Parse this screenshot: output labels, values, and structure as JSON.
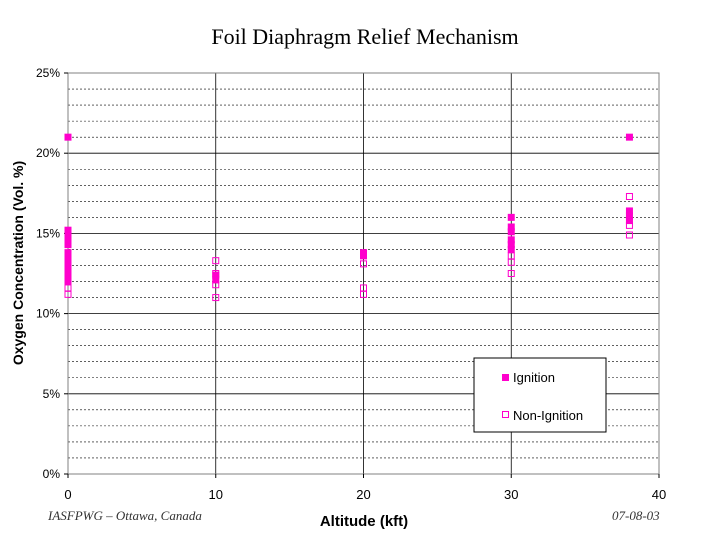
{
  "chart_data": {
    "type": "scatter",
    "title": "Foil Diaphragm Relief Mechanism",
    "xlabel": "Altitude (kft)",
    "ylabel": "Oxygen Concentration (Vol. %)",
    "xlim": [
      0,
      40
    ],
    "ylim": [
      0,
      25
    ],
    "x_ticks": [
      "0",
      "10",
      "20",
      "30",
      "40"
    ],
    "y_ticks": [
      "0%",
      "5%",
      "10%",
      "15%",
      "20%",
      "25%"
    ],
    "grid": true,
    "legend_position": "bottom-right",
    "series": [
      {
        "name": "Ignition",
        "marker": "filled-square",
        "color": "#ff00cc",
        "points": [
          [
            0,
            21.0
          ],
          [
            0,
            15.2
          ],
          [
            0,
            14.9
          ],
          [
            0,
            14.6
          ],
          [
            0,
            14.3
          ],
          [
            0,
            13.8
          ],
          [
            0,
            13.5
          ],
          [
            0,
            13.2
          ],
          [
            0,
            12.9
          ],
          [
            0,
            12.6
          ],
          [
            0,
            12.3
          ],
          [
            0,
            12.0
          ],
          [
            10,
            12.4
          ],
          [
            10,
            12.1
          ],
          [
            20,
            13.8
          ],
          [
            20,
            13.6
          ],
          [
            30,
            16.0
          ],
          [
            30,
            15.4
          ],
          [
            30,
            15.1
          ],
          [
            30,
            14.6
          ],
          [
            30,
            14.3
          ],
          [
            30,
            14.0
          ],
          [
            38,
            21.0
          ],
          [
            38,
            16.4
          ],
          [
            38,
            16.1
          ],
          [
            38,
            15.8
          ]
        ]
      },
      {
        "name": "Non-Ignition",
        "marker": "open-square",
        "color": "#ff00cc",
        "points": [
          [
            0,
            11.6
          ],
          [
            0,
            11.2
          ],
          [
            10,
            13.3
          ],
          [
            10,
            12.5
          ],
          [
            10,
            11.8
          ],
          [
            10,
            11.0
          ],
          [
            20,
            13.1
          ],
          [
            20,
            11.6
          ],
          [
            20,
            11.2
          ],
          [
            30,
            13.6
          ],
          [
            30,
            13.2
          ],
          [
            30,
            12.5
          ],
          [
            38,
            17.3
          ],
          [
            38,
            15.5
          ],
          [
            38,
            14.9
          ]
        ]
      }
    ]
  },
  "footer": {
    "left": "IASFPWG – Ottawa, Canada",
    "right": "07-08-03"
  }
}
